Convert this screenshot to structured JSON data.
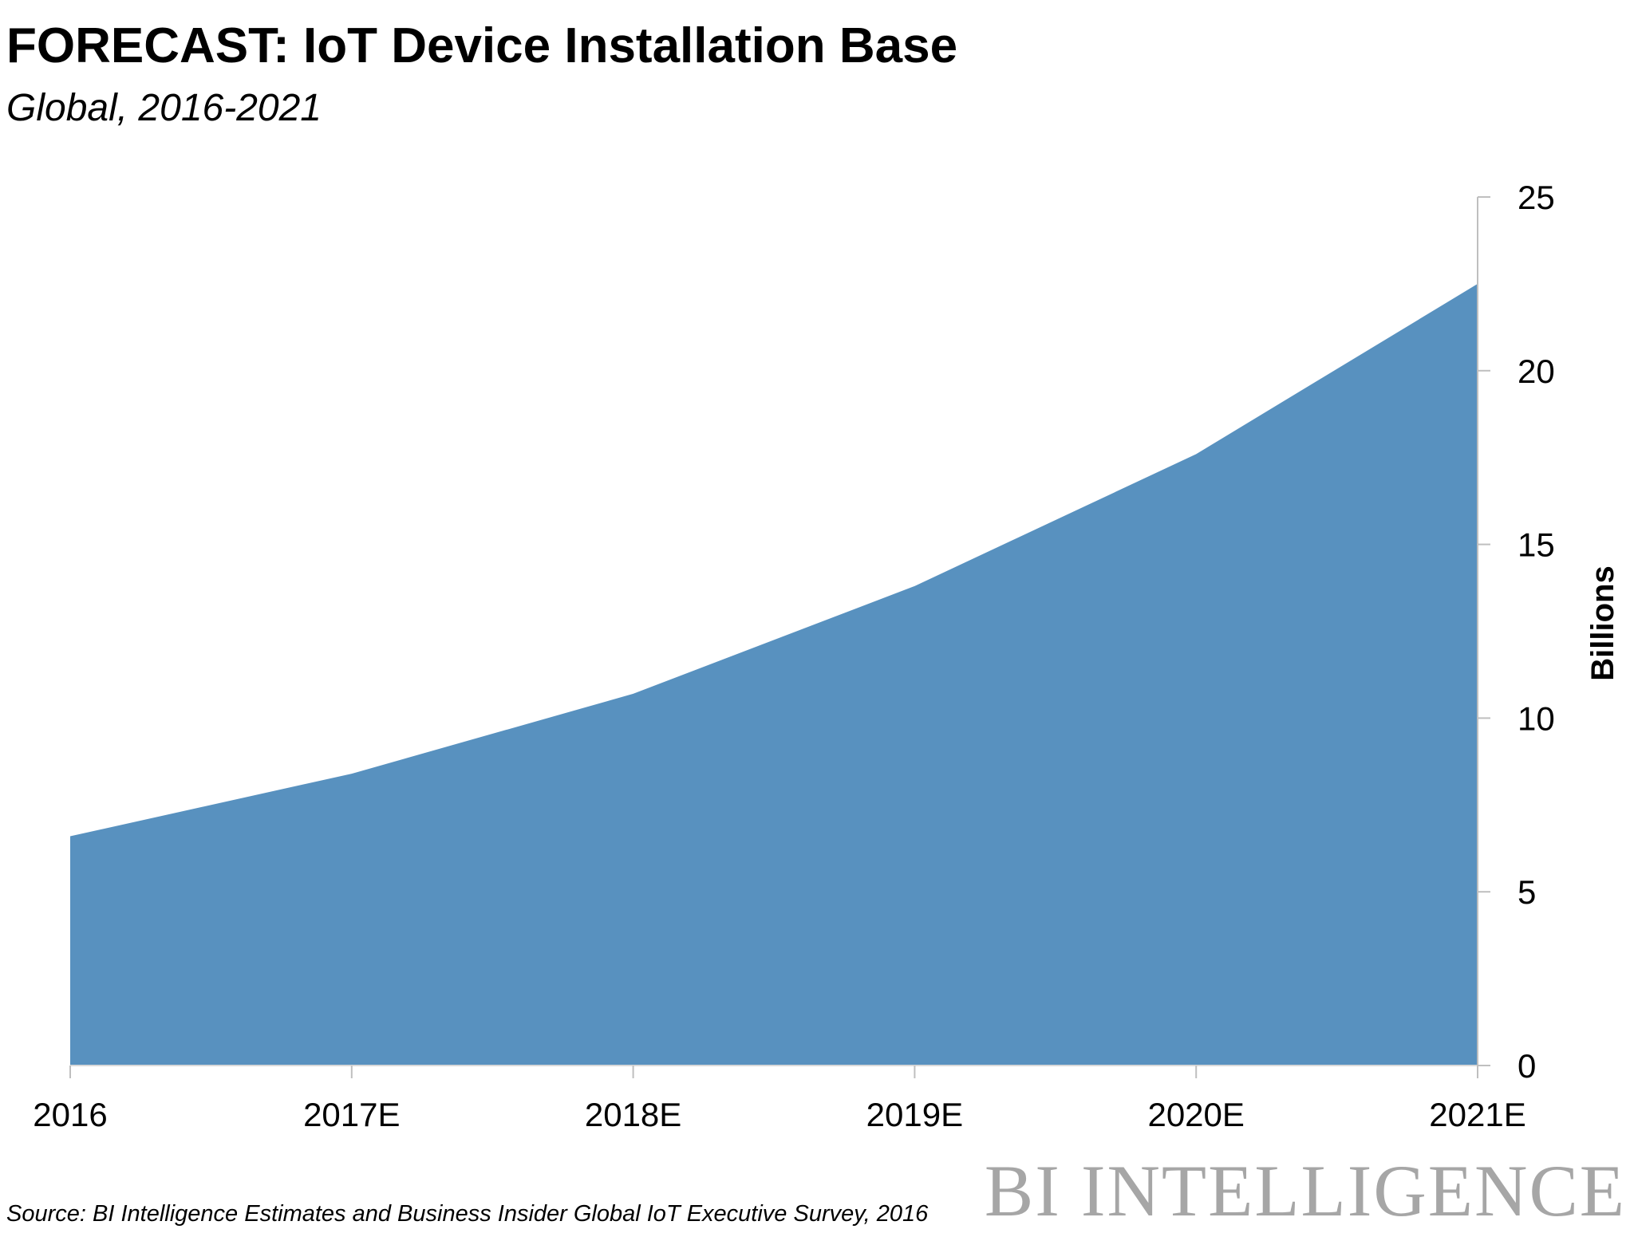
{
  "header": {
    "title": "FORECAST: IoT Device Installation Base",
    "subtitle": "Global, 2016-2021"
  },
  "chart_data": {
    "type": "area",
    "title": "FORECAST: IoT Device Installation Base",
    "subtitle": "Global, 2016-2021",
    "categories": [
      "2016",
      "2017E",
      "2018E",
      "2019E",
      "2020E",
      "2021E"
    ],
    "series": [
      {
        "name": "IoT Device Installation Base",
        "values": [
          6.6,
          8.4,
          10.7,
          13.8,
          17.6,
          22.5
        ]
      }
    ],
    "xlabel": "",
    "ylabel": "Billions",
    "ylim": [
      0,
      25
    ],
    "yticks": [
      0,
      5,
      10,
      15,
      20,
      25
    ],
    "y_axis_side": "right",
    "grid": false,
    "fill_color": "#5891bf"
  },
  "footer": {
    "source": "Source: BI Intelligence Estimates and Business Insider Global IoT Executive Survey, 2016",
    "brand": "BI INTELLIGENCE"
  }
}
